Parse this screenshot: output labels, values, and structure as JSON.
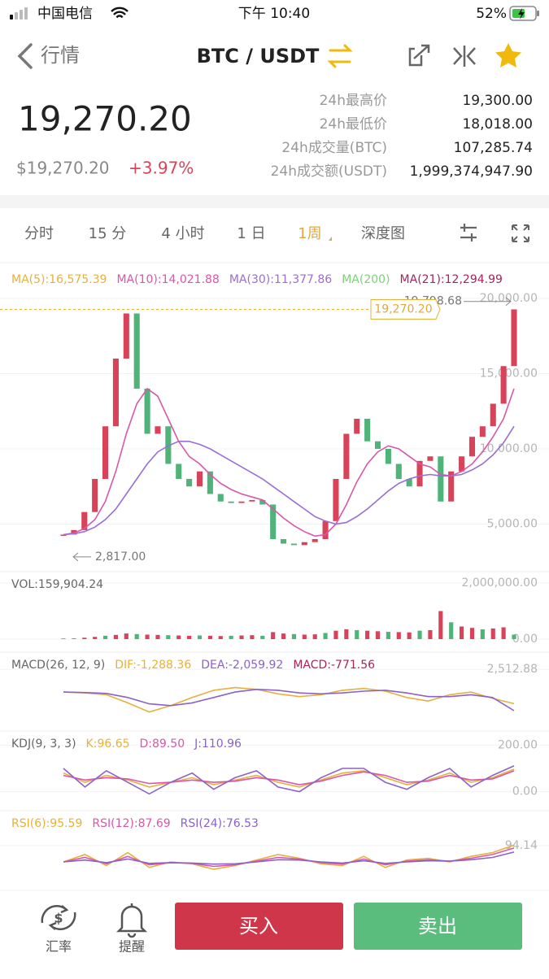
{
  "status_bar": {
    "carrier": "中国电信",
    "time": "下午 10:40",
    "battery": "52%"
  },
  "nav": {
    "back": "行情",
    "pair": "BTC / USDT"
  },
  "ticker": {
    "price": "19,270.20",
    "usd": "$19,270.20",
    "change": "+3.97%"
  },
  "stats": [
    {
      "label": "24h最高价",
      "value": "19,300.00"
    },
    {
      "label": "24h最低价",
      "value": "18,018.00"
    },
    {
      "label": "24h成交量(BTC)",
      "value": "107,285.74"
    },
    {
      "label": "24h成交额(USDT)",
      "value": "1,999,374,947.90"
    }
  ],
  "tabs": [
    "分时",
    "15 分",
    "4 小时",
    "1 日",
    "1周",
    "深度图"
  ],
  "bottom": {
    "rate": "汇率",
    "alert": "提醒",
    "buy": "买入",
    "sell": "卖出"
  },
  "chart_data": [
    {
      "type": "candlestick",
      "legend": [
        {
          "label": "MA(5):16,575.39",
          "color": "#e8b03c"
        },
        {
          "label": "MA(10):14,021.88",
          "color": "#d957a8",
          "values": [
            4300,
            4400,
            4700,
            5300,
            6500,
            8500,
            11000,
            13000,
            14000,
            13500,
            12000,
            10500,
            9500,
            9000,
            8300,
            7700,
            7300,
            7000,
            6800,
            6600,
            6000,
            5400,
            4900,
            4500,
            4200,
            4300,
            5000,
            6300,
            7800,
            9000,
            9800,
            10200,
            10000,
            9500,
            9000,
            8800,
            8300,
            8200,
            8500,
            9000,
            9800,
            10800,
            12000,
            14000
          ]
        },
        {
          "label": "MA(30):11,377.86",
          "color": "#9b6dd6",
          "values": [
            4300,
            4350,
            4500,
            4800,
            5300,
            6000,
            7000,
            8000,
            9000,
            9800,
            10200,
            10500,
            10500,
            10300,
            10000,
            9600,
            9200,
            8800,
            8400,
            8000,
            7500,
            7000,
            6500,
            6000,
            5500,
            5200,
            5000,
            5100,
            5500,
            6000,
            6600,
            7200,
            7700,
            8000,
            8200,
            8300,
            8200,
            8200,
            8300,
            8600,
            9000,
            9600,
            10400,
            11500
          ]
        },
        {
          "label": "MA(200)",
          "color": "#7ed07a"
        },
        {
          "label": "MA(21):12,294.99",
          "color": "#a8245b"
        }
      ],
      "values": [
        4300,
        4600,
        5800,
        8000,
        11500,
        16000,
        19000,
        14000,
        11000,
        11500,
        9000,
        8000,
        7500,
        8500,
        7000,
        6500,
        6400,
        6500,
        6600,
        6300,
        4000,
        3700,
        3600,
        3800,
        4000,
        5200,
        8000,
        11000,
        12000,
        10500,
        10000,
        9000,
        8000,
        7500,
        9200,
        9500,
        6500,
        8500,
        9500,
        10800,
        11500,
        13000,
        15500,
        19270.2
      ],
      "up_color": "#d9435a",
      "down_color": "#4fb37a",
      "high": {
        "value": 19798.68,
        "label": "19,798.68"
      },
      "low": {
        "value": 2817,
        "label": "2,817.00"
      },
      "last": {
        "value": 19270.2,
        "label": "19,270.20"
      },
      "ylim": [
        2000,
        22000
      ],
      "yticks": [
        {
          "value": 5000,
          "label": "5,000.00"
        },
        {
          "value": 10000,
          "label": "10,000.00"
        },
        {
          "value": 15000,
          "label": "15,000.00"
        },
        {
          "value": 20000,
          "label": "20,000.00"
        }
      ]
    },
    {
      "type": "bar",
      "title": "VOL:159,904.24",
      "values": [
        20000,
        30000,
        50000,
        80000,
        120000,
        150000,
        200000,
        180000,
        160000,
        150000,
        140000,
        130000,
        120000,
        130000,
        120000,
        110000,
        120000,
        130000,
        140000,
        120000,
        250000,
        200000,
        180000,
        160000,
        170000,
        220000,
        300000,
        350000,
        320000,
        300000,
        280000,
        260000,
        250000,
        240000,
        300000,
        320000,
        1000000,
        600000,
        450000,
        400000,
        350000,
        380000,
        420000,
        159904.24
      ],
      "up_color": "#d9435a",
      "down_color": "#4fb37a",
      "ylim": [
        0,
        2000000
      ],
      "yticks": [
        {
          "value": 0,
          "label": "0.00"
        },
        {
          "value": 2000000,
          "label": "2,000,000.00"
        }
      ]
    },
    {
      "type": "line",
      "title": "MACD(26, 12, 9)",
      "series": [
        {
          "name": "DIF:-1,288.36",
          "color": "#e8b03c",
          "values": [
            0,
            -100,
            -300,
            -1200,
            -2200,
            -1500,
            -600,
            200,
            500,
            300,
            -200,
            -500,
            -300,
            200,
            400,
            100,
            -600,
            -1000,
            -300,
            0,
            -700,
            -1288.36
          ]
        },
        {
          "name": "DEA:-2,059.92",
          "color": "#8a62c9",
          "values": [
            0,
            -50,
            -150,
            -600,
            -1300,
            -1500,
            -1200,
            -600,
            0,
            300,
            200,
            -100,
            -200,
            -100,
            100,
            200,
            -100,
            -500,
            -500,
            -300,
            -600,
            -2059.92
          ]
        },
        {
          "name": "MACD:-771.56",
          "color": "#a8245b"
        }
      ],
      "ylim": [
        -3500,
        2800
      ],
      "yticks": [
        {
          "value": 2512.88,
          "label": "2,512.88"
        }
      ]
    },
    {
      "type": "line",
      "title": "KDJ(9, 3, 3)",
      "series": [
        {
          "name": "K:96.65",
          "color": "#e8b03c",
          "values": [
            80,
            40,
            70,
            50,
            20,
            40,
            60,
            30,
            50,
            70,
            40,
            20,
            50,
            80,
            90,
            60,
            30,
            50,
            80,
            40,
            60,
            96.65
          ]
        },
        {
          "name": "D:89.50",
          "color": "#d957a8",
          "values": [
            70,
            50,
            60,
            55,
            35,
            40,
            50,
            40,
            45,
            60,
            50,
            30,
            45,
            70,
            85,
            70,
            40,
            45,
            70,
            50,
            55,
            89.5
          ]
        },
        {
          "name": "J:110.96",
          "color": "#8a62c9",
          "values": [
            100,
            20,
            90,
            40,
            -10,
            40,
            80,
            10,
            60,
            90,
            20,
            0,
            60,
            100,
            100,
            40,
            10,
            60,
            100,
            20,
            70,
            110.96
          ]
        }
      ],
      "ylim": [
        -40,
        240
      ],
      "yticks": [
        {
          "value": 0,
          "label": "0.00"
        },
        {
          "value": 200,
          "label": "200.00"
        }
      ]
    },
    {
      "type": "line",
      "series": [
        {
          "name": "RSI(6):95.59",
          "color": "#e8b03c",
          "values": [
            50,
            70,
            40,
            75,
            35,
            50,
            45,
            30,
            40,
            55,
            70,
            60,
            45,
            40,
            65,
            35,
            55,
            60,
            50,
            65,
            75,
            95.59
          ]
        },
        {
          "name": "RSI(12):87.69",
          "color": "#d957a8",
          "values": [
            50,
            62,
            45,
            65,
            42,
            48,
            46,
            38,
            42,
            52,
            62,
            58,
            48,
            44,
            58,
            42,
            52,
            56,
            52,
            60,
            70,
            87.69
          ]
        },
        {
          "name": "RSI(24):76.53",
          "color": "#8a62c9",
          "values": [
            50,
            55,
            48,
            58,
            46,
            48,
            47,
            44,
            45,
            50,
            56,
            55,
            50,
            47,
            53,
            46,
            50,
            53,
            52,
            56,
            62,
            76.53
          ]
        }
      ],
      "ylim": [
        -5,
        171
      ],
      "yticks": [
        94.14
      ]
    }
  ]
}
